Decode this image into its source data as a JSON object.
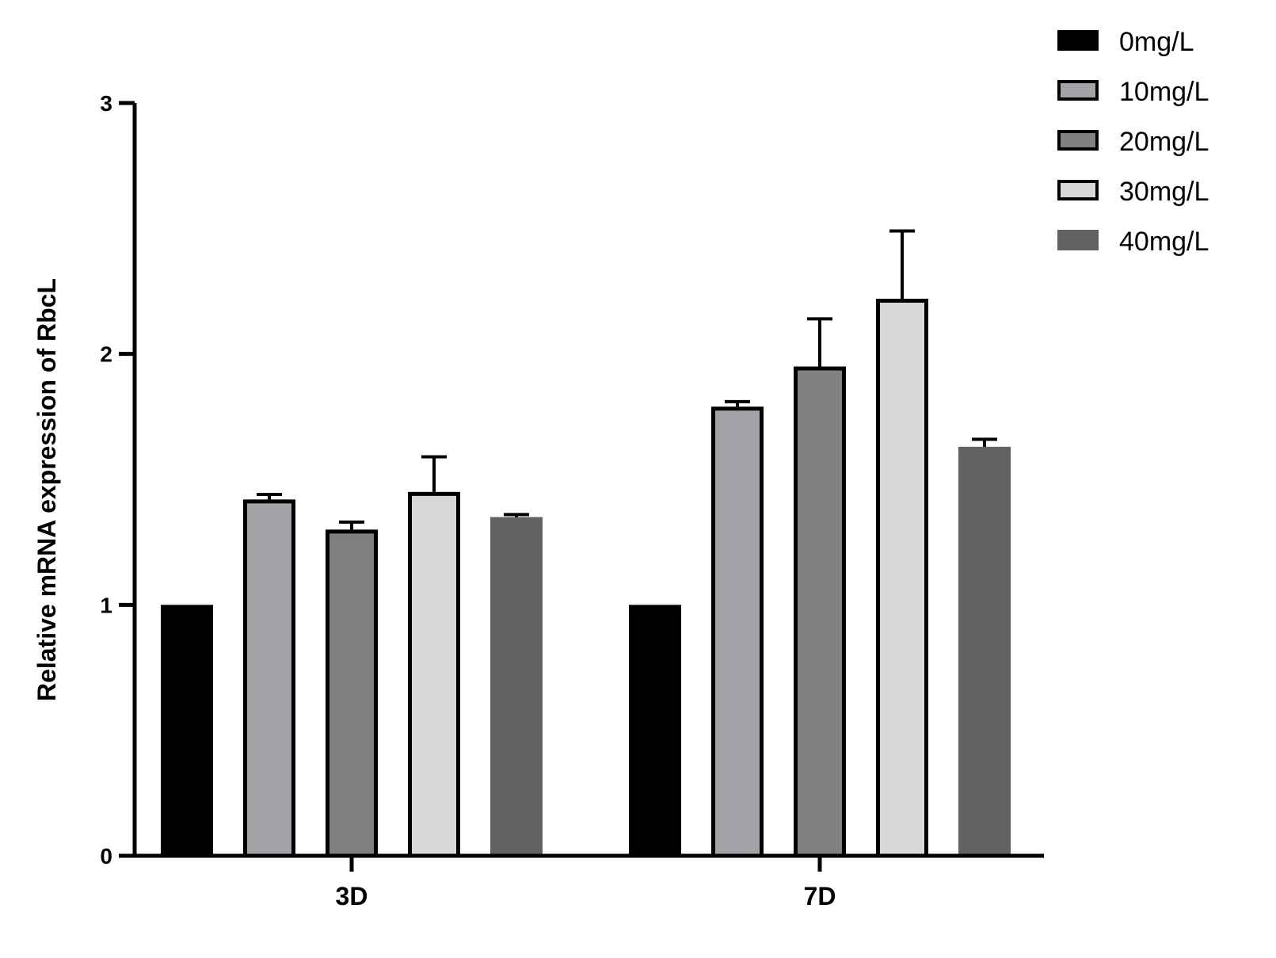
{
  "chart_data": {
    "type": "bar",
    "categories": [
      "3D",
      "7D"
    ],
    "ylabel": "Relative mRNA expression of RbcL",
    "xlabel": "",
    "ylim": [
      0,
      3
    ],
    "yticks": [
      "0",
      "1",
      "2",
      "3"
    ],
    "legend_placement": "top-right",
    "grid": false,
    "series": [
      {
        "name": "0mg/L",
        "values": [
          1.0,
          1.0
        ],
        "errors": [
          0,
          0
        ],
        "color": "#000000",
        "outlined": false
      },
      {
        "name": "10mg/L",
        "values": [
          1.42,
          1.79
        ],
        "errors": [
          0.02,
          0.02
        ],
        "color": "#a4a3a8",
        "outlined": true
      },
      {
        "name": "20mg/L",
        "values": [
          1.3,
          1.95
        ],
        "errors": [
          0.03,
          0.19
        ],
        "color": "#808080",
        "outlined": true
      },
      {
        "name": "30mg/L",
        "values": [
          1.45,
          2.22
        ],
        "errors": [
          0.14,
          0.27
        ],
        "color": "#d8d8d8",
        "outlined": true
      },
      {
        "name": "40mg/L",
        "values": [
          1.35,
          1.63
        ],
        "errors": [
          0.01,
          0.03
        ],
        "color": "#626262",
        "outlined": false
      }
    ]
  }
}
